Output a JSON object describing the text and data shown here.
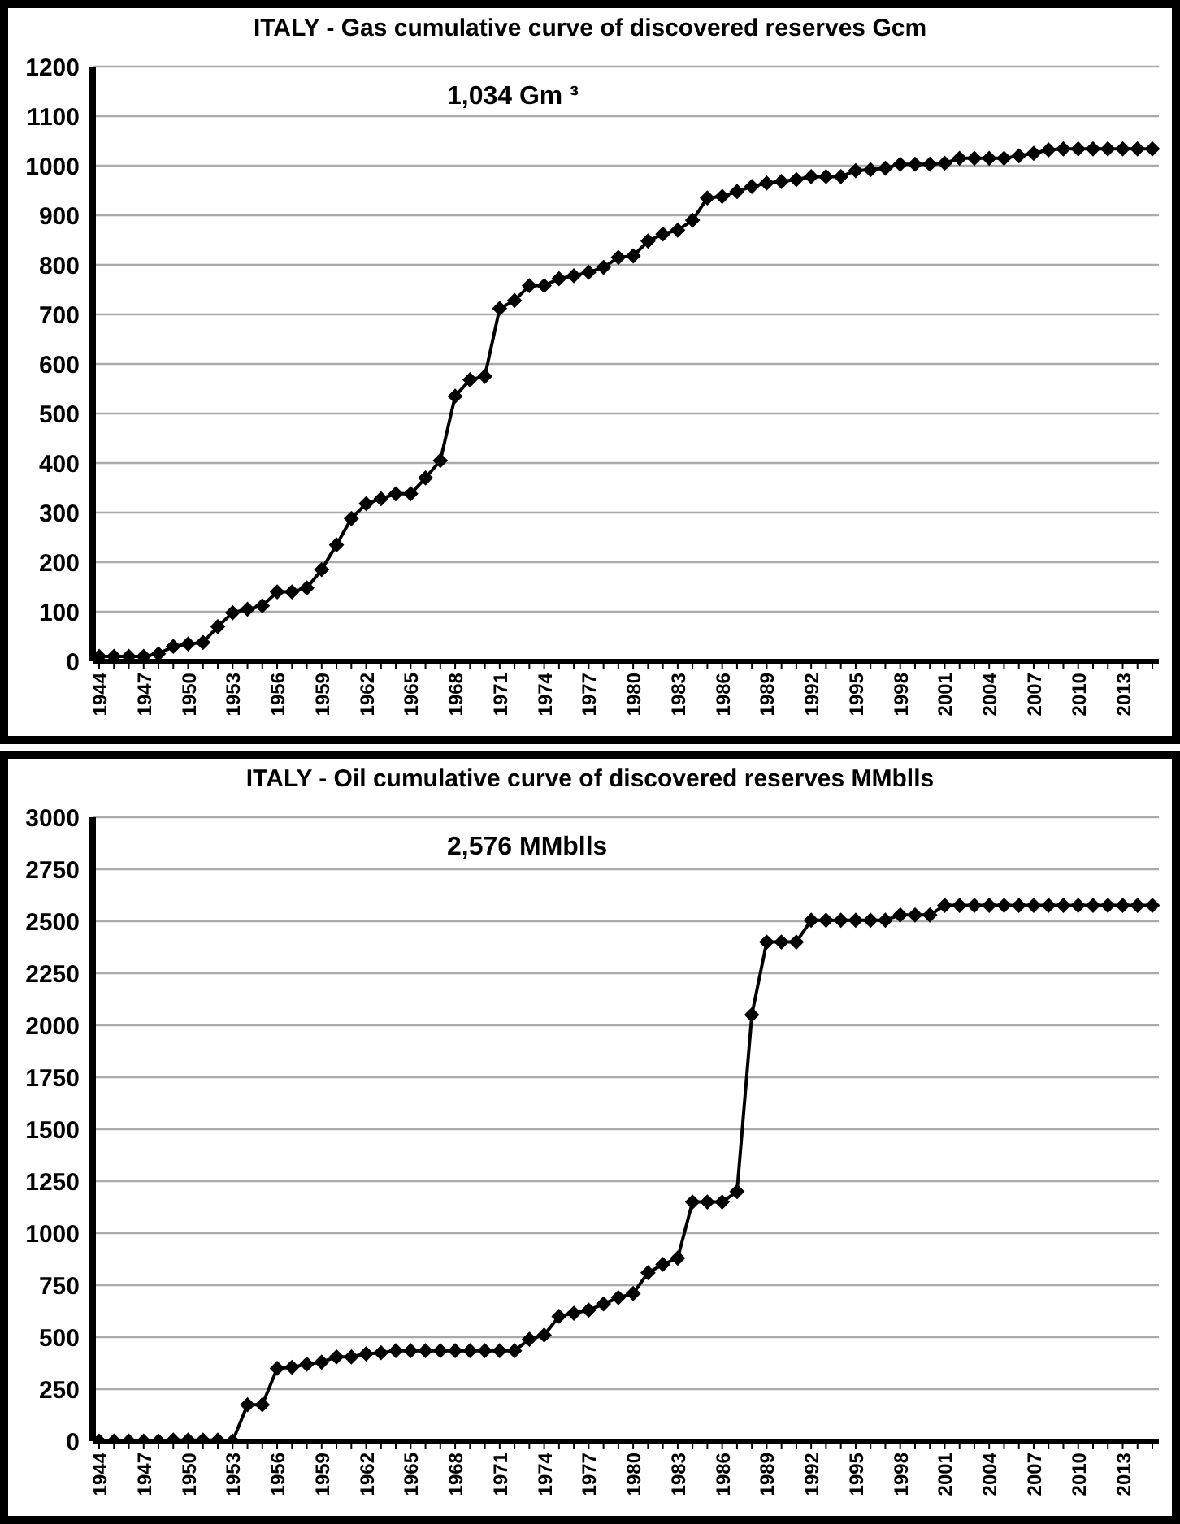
{
  "chart_data": [
    {
      "type": "line",
      "title": "ITALY - Gas cumulative curve  of discovered reserves Gcm",
      "categories": [
        "1944",
        null,
        null,
        "1947",
        null,
        null,
        "1950",
        null,
        null,
        "1953",
        null,
        null,
        "1956",
        null,
        null,
        "1959",
        null,
        null,
        "1962",
        null,
        null,
        "1965",
        null,
        null,
        "1968",
        null,
        null,
        "1971",
        null,
        null,
        "1974",
        null,
        null,
        "1977",
        null,
        null,
        "1980",
        null,
        null,
        "1983",
        null,
        null,
        "1986",
        null,
        null,
        "1989",
        null,
        null,
        "1992",
        null,
        null,
        "1995",
        null,
        null,
        "1998",
        null,
        null,
        "2001",
        null,
        null,
        "2004",
        null,
        null,
        "2007",
        null,
        null,
        "2010",
        null,
        null,
        "2013",
        null,
        null
      ],
      "series": [
        {
          "color": "#000000",
          "values": [
            10,
            10,
            10,
            10,
            15,
            30,
            35,
            38,
            70,
            98,
            105,
            112,
            140,
            140,
            148,
            185,
            235,
            288,
            318,
            328,
            338,
            338,
            370,
            405,
            535,
            568,
            575,
            712,
            728,
            758,
            758,
            772,
            778,
            785,
            795,
            815,
            818,
            848,
            862,
            870,
            890,
            935,
            938,
            948,
            958,
            965,
            968,
            972,
            978,
            978,
            978,
            990,
            992,
            995,
            1003,
            1003,
            1003,
            1005,
            1015,
            1015,
            1015,
            1015,
            1020,
            1025,
            1032,
            1034,
            1034,
            1034,
            1034,
            1034,
            1034,
            1034
          ]
        }
      ],
      "ylim": [
        0,
        1200
      ],
      "yticks": [
        0,
        100,
        200,
        300,
        400,
        500,
        600,
        700,
        800,
        900,
        1000,
        1100,
        1200
      ],
      "grid": "y",
      "marker": "diamond",
      "annotations": [
        "1,034 Gm ³"
      ]
    },
    {
      "type": "line",
      "title": "ITALY - Oil cumulative curve of discovered reserves MMblls",
      "categories": [
        "1944",
        null,
        null,
        "1947",
        null,
        null,
        "1950",
        null,
        null,
        "1953",
        null,
        null,
        "1956",
        null,
        null,
        "1959",
        null,
        null,
        "1962",
        null,
        null,
        "1965",
        null,
        null,
        "1968",
        null,
        null,
        "1971",
        null,
        null,
        "1974",
        null,
        null,
        "1977",
        null,
        null,
        "1980",
        null,
        null,
        "1983",
        null,
        null,
        "1986",
        null,
        null,
        "1989",
        null,
        null,
        "1992",
        null,
        null,
        "1995",
        null,
        null,
        "1998",
        null,
        null,
        "2001",
        null,
        null,
        "2004",
        null,
        null,
        "2007",
        null,
        null,
        "2010",
        null,
        null,
        "2013",
        null,
        null
      ],
      "series": [
        {
          "color": "#000000",
          "values": [
            0,
            0,
            0,
            0,
            0,
            5,
            5,
            5,
            5,
            0,
            175,
            175,
            350,
            355,
            370,
            380,
            405,
            405,
            420,
            425,
            435,
            435,
            435,
            435,
            435,
            435,
            435,
            435,
            435,
            490,
            510,
            600,
            615,
            630,
            660,
            690,
            710,
            810,
            850,
            880,
            1150,
            1150,
            1150,
            1200,
            2050,
            2400,
            2400,
            2400,
            2505,
            2505,
            2505,
            2505,
            2505,
            2505,
            2530,
            2530,
            2530,
            2576,
            2576,
            2576,
            2576,
            2576,
            2576,
            2576,
            2576,
            2576,
            2576,
            2576,
            2576,
            2576,
            2576,
            2576
          ]
        }
      ],
      "ylim": [
        0,
        3000
      ],
      "yticks": [
        0,
        250,
        500,
        750,
        1000,
        1250,
        1500,
        1750,
        2000,
        2250,
        2500,
        2750,
        3000
      ],
      "grid": "y",
      "marker": "diamond",
      "annotations": [
        "2,576 MMblls"
      ]
    }
  ]
}
